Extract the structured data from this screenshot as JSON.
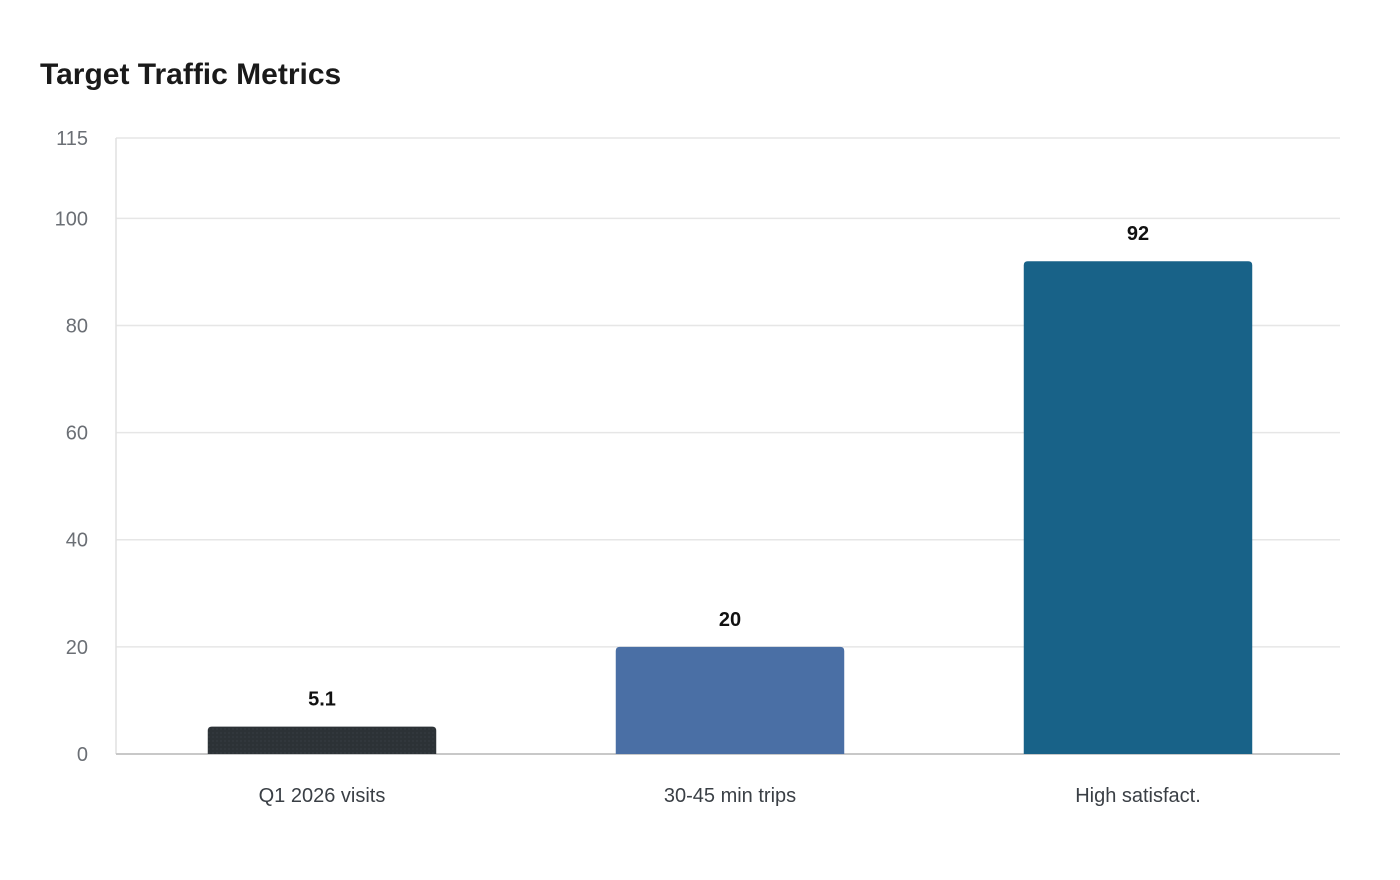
{
  "chart_data": {
    "type": "bar",
    "title": "Target Traffic Metrics",
    "categories": [
      "Q1 2026 visits",
      "30-45 min trips",
      "High satisfact."
    ],
    "values": [
      5.1,
      20,
      92
    ],
    "value_labels": [
      "5.1",
      "20",
      "92"
    ],
    "bar_colors": [
      "#2c3236",
      "#4a6fa5",
      "#186288"
    ],
    "ylim": [
      0,
      115
    ],
    "yticks": [
      0,
      20,
      40,
      60,
      80,
      100,
      115
    ],
    "xlabel": "",
    "ylabel": "",
    "grid": true,
    "legend": "none"
  }
}
